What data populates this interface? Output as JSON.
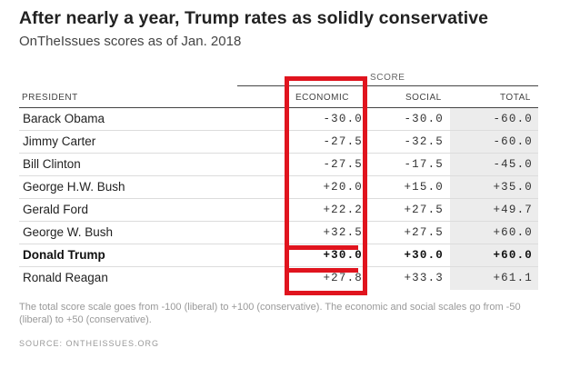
{
  "title": "After nearly a year, Trump rates as solidly conservative",
  "subtitle": "OnTheIssues scores as of Jan. 2018",
  "table": {
    "group_header": "SCORE",
    "columns": {
      "president": "PRESIDENT",
      "economic": "ECONOMIC",
      "social": "SOCIAL",
      "total": "TOTAL"
    },
    "rows": [
      {
        "president": "Barack Obama",
        "economic": "-30.0",
        "social": "-30.0",
        "total": "-60.0"
      },
      {
        "president": "Jimmy Carter",
        "economic": "-27.5",
        "social": "-32.5",
        "total": "-60.0"
      },
      {
        "president": "Bill Clinton",
        "economic": "-27.5",
        "social": "-17.5",
        "total": "-45.0"
      },
      {
        "president": "George H.W. Bush",
        "economic": "+20.0",
        "social": "+15.0",
        "total": "+35.0"
      },
      {
        "president": "Gerald Ford",
        "economic": "+22.2",
        "social": "+27.5",
        "total": "+49.7"
      },
      {
        "president": "George W. Bush",
        "economic": "+32.5",
        "social": "+27.5",
        "total": "+60.0"
      },
      {
        "president": "Donald Trump",
        "economic": "+30.0",
        "social": "+30.0",
        "total": "+60.0"
      },
      {
        "president": "Ronald Reagan",
        "economic": "+27.8",
        "social": "+33.3",
        "total": "+61.1"
      }
    ],
    "highlighted_row": "Donald Trump",
    "highlight_color": "#e0141e",
    "total_column_bg": "#ececec"
  },
  "note": "The total score scale goes from -100 (liberal) to +100 (conservative). The economic and social scales go from -50 (liberal) to +50 (conservative).",
  "source": "SOURCE: ONTHEISSUES.ORG"
}
